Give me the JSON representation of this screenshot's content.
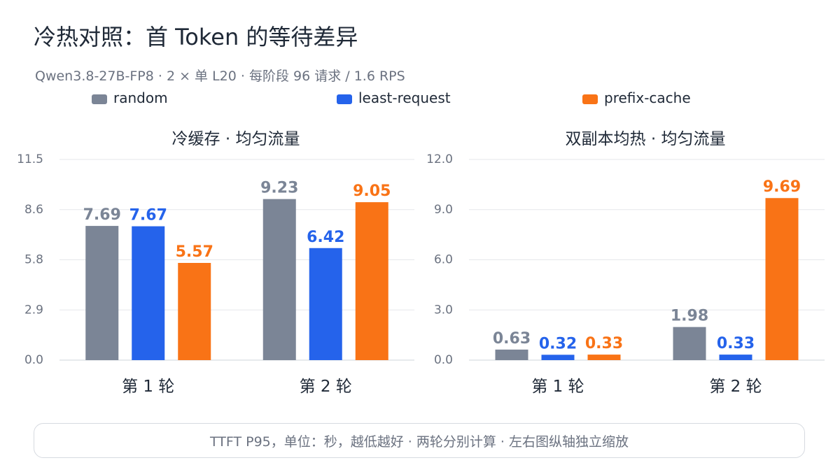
{
  "title": "冷热对照：首 Token 的等待差异",
  "subtitle": "Qwen3.8-27B-FP8 · 2 × 单 L20 · 每阶段 96 请求 / 1.6 RPS",
  "footnote": "TTFT P95，单位：秒，越低越好 · 两轮分别计算 · 左右图纵轴独立缩放",
  "legend": [
    {
      "label": "random",
      "color": "#7b8596"
    },
    {
      "label": "least-request",
      "color": "#2563eb"
    },
    {
      "label": "prefix-cache",
      "color": "#f97316"
    }
  ],
  "chart_data": [
    {
      "type": "bar",
      "title": "冷缓存 · 均匀流量",
      "categories": [
        "第 1 轮",
        "第 2 轮"
      ],
      "yticks": [
        "0.0",
        "2.9",
        "5.8",
        "8.6",
        "11.5"
      ],
      "ylim": [
        0,
        11.5
      ],
      "grid": true,
      "series": [
        {
          "name": "random",
          "color": "#7b8596",
          "values": [
            7.69,
            9.23
          ],
          "labels": [
            "7.69",
            "9.23"
          ]
        },
        {
          "name": "least-request",
          "color": "#2563eb",
          "values": [
            7.67,
            6.42
          ],
          "labels": [
            "7.67",
            "6.42"
          ]
        },
        {
          "name": "prefix-cache",
          "color": "#f97316",
          "values": [
            5.57,
            9.05
          ],
          "labels": [
            "5.57",
            "9.05"
          ]
        }
      ]
    },
    {
      "type": "bar",
      "title": "双副本均热 · 均匀流量",
      "categories": [
        "第 1 轮",
        "第 2 轮"
      ],
      "yticks": [
        "0.0",
        "3.0",
        "6.0",
        "9.0",
        "12.0"
      ],
      "ylim": [
        0,
        12.0
      ],
      "grid": true,
      "series": [
        {
          "name": "random",
          "color": "#7b8596",
          "values": [
            0.63,
            1.98
          ],
          "labels": [
            "0.63",
            "1.98"
          ]
        },
        {
          "name": "least-request",
          "color": "#2563eb",
          "values": [
            0.32,
            0.33
          ],
          "labels": [
            "0.32",
            "0.33"
          ]
        },
        {
          "name": "prefix-cache",
          "color": "#f97316",
          "values": [
            0.33,
            9.69
          ],
          "labels": [
            "0.33",
            "9.69"
          ]
        }
      ]
    }
  ]
}
